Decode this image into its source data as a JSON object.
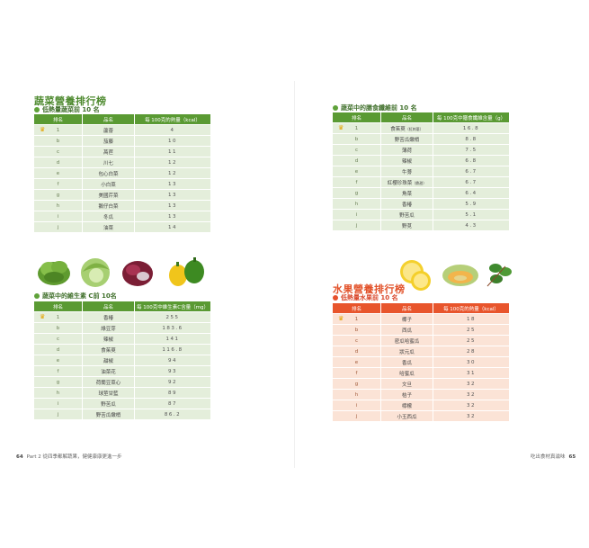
{
  "left_page": {
    "section_title": "蔬菜營養排行榜",
    "low_calorie": {
      "subtitle": "低熱量蔬菜前 10 名",
      "headers": [
        "排名",
        "品名",
        "每 100克的熱量（kcal）"
      ],
      "rows": [
        {
          "rank": "1",
          "name": "蘆薈",
          "value": "4"
        },
        {
          "rank": "b",
          "name": "茄藤",
          "value": "10"
        },
        {
          "rank": "c",
          "name": "萵苣",
          "value": "11"
        },
        {
          "rank": "d",
          "name": "川七",
          "value": "12"
        },
        {
          "rank": "e",
          "name": "包心白菜",
          "value": "12"
        },
        {
          "rank": "f",
          "name": "小白菜",
          "value": "13"
        },
        {
          "rank": "g",
          "name": "美國芹菜",
          "value": "13"
        },
        {
          "rank": "h",
          "name": "鵝仔白菜",
          "value": "13"
        },
        {
          "rank": "i",
          "name": "冬瓜",
          "value": "13"
        },
        {
          "rank": "j",
          "name": "油菜",
          "value": "14"
        }
      ]
    },
    "vitamin_c": {
      "subtitle": "蔬菜中的維生素 C前 10名",
      "headers": [
        "排名",
        "品名",
        "每 100克中維生素C含量（mg）"
      ],
      "rows": [
        {
          "rank": "1",
          "name": "香椿",
          "value": "255"
        },
        {
          "rank": "b",
          "name": "綠豆芽",
          "value": "183.6"
        },
        {
          "rank": "c",
          "name": "辣椒",
          "value": "141"
        },
        {
          "rank": "d",
          "name": "食茱萸",
          "value": "116.8"
        },
        {
          "rank": "e",
          "name": "甜椒",
          "value": "94"
        },
        {
          "rank": "f",
          "name": "油菜花",
          "value": "93"
        },
        {
          "rank": "g",
          "name": "荷蘭豆菜心",
          "value": "92"
        },
        {
          "rank": "h",
          "name": "球莖甘藍",
          "value": "89"
        },
        {
          "rank": "i",
          "name": "野苦瓜",
          "value": "87"
        },
        {
          "rank": "j",
          "name": "野苦瓜嫩梢",
          "value": "86.2"
        }
      ]
    },
    "folio": {
      "page_no": "64",
      "text": "Part 2 從四季都解蔬果，健健康康更進一步"
    }
  },
  "right_page": {
    "fiber": {
      "subtitle": "蔬菜中的膳食纖維前 10 名",
      "headers": [
        "排名",
        "品名",
        "每 100克中膳食纖維含量（g）"
      ],
      "rows": [
        {
          "rank": "1",
          "name": "食茱萸",
          "note": "（紅刺蔥）",
          "value": "16.8"
        },
        {
          "rank": "b",
          "name": "野苦瓜嫩梢",
          "note": "",
          "value": "8.8"
        },
        {
          "rank": "c",
          "name": "薄荷",
          "note": "",
          "value": "7.5"
        },
        {
          "rank": "d",
          "name": "辣椒",
          "note": "",
          "value": "6.8"
        },
        {
          "rank": "e",
          "name": "牛蒡",
          "note": "",
          "value": "6.7"
        },
        {
          "rank": "f",
          "name": "紅櫻珍珠菜",
          "note": "（鼎甜）",
          "value": "6.7"
        },
        {
          "rank": "g",
          "name": "角菜",
          "note": "",
          "value": "6.4"
        },
        {
          "rank": "h",
          "name": "香椿",
          "note": "",
          "value": "5.9"
        },
        {
          "rank": "i",
          "name": "野苦瓜",
          "note": "",
          "value": "5.1"
        },
        {
          "rank": "j",
          "name": "野莧",
          "note": "",
          "value": "4.3"
        }
      ]
    },
    "section_title": "水果營養排行榜",
    "fruit_low_calorie": {
      "subtitle": "低熱量水果前 10 名",
      "headers": [
        "排名",
        "品名",
        "每 100克的熱量（kcal）"
      ],
      "rows": [
        {
          "rank": "1",
          "name": "椰子",
          "value": "18"
        },
        {
          "rank": "b",
          "name": "西瓜",
          "value": "25"
        },
        {
          "rank": "c",
          "name": "密瓜哈蜜瓜",
          "value": "25"
        },
        {
          "rank": "d",
          "name": "狀元瓜",
          "value": "28"
        },
        {
          "rank": "e",
          "name": "香瓜",
          "value": "30"
        },
        {
          "rank": "f",
          "name": "哈蜜瓜",
          "value": "31"
        },
        {
          "rank": "g",
          "name": "文旦",
          "value": "32"
        },
        {
          "rank": "h",
          "name": "桔子",
          "value": "32"
        },
        {
          "rank": "i",
          "name": "檸檬",
          "value": "32"
        },
        {
          "rank": "j",
          "name": "小玉西瓜",
          "value": "32"
        }
      ]
    },
    "folio": {
      "text": "吃出食材真滋味",
      "page_no": "65"
    }
  },
  "colors": {
    "green_header": "#5a9a33",
    "green_row": "#e4eedb",
    "orange_header": "#e8552c",
    "orange_row": "#fbe3d6",
    "crown": "#e5a400"
  }
}
